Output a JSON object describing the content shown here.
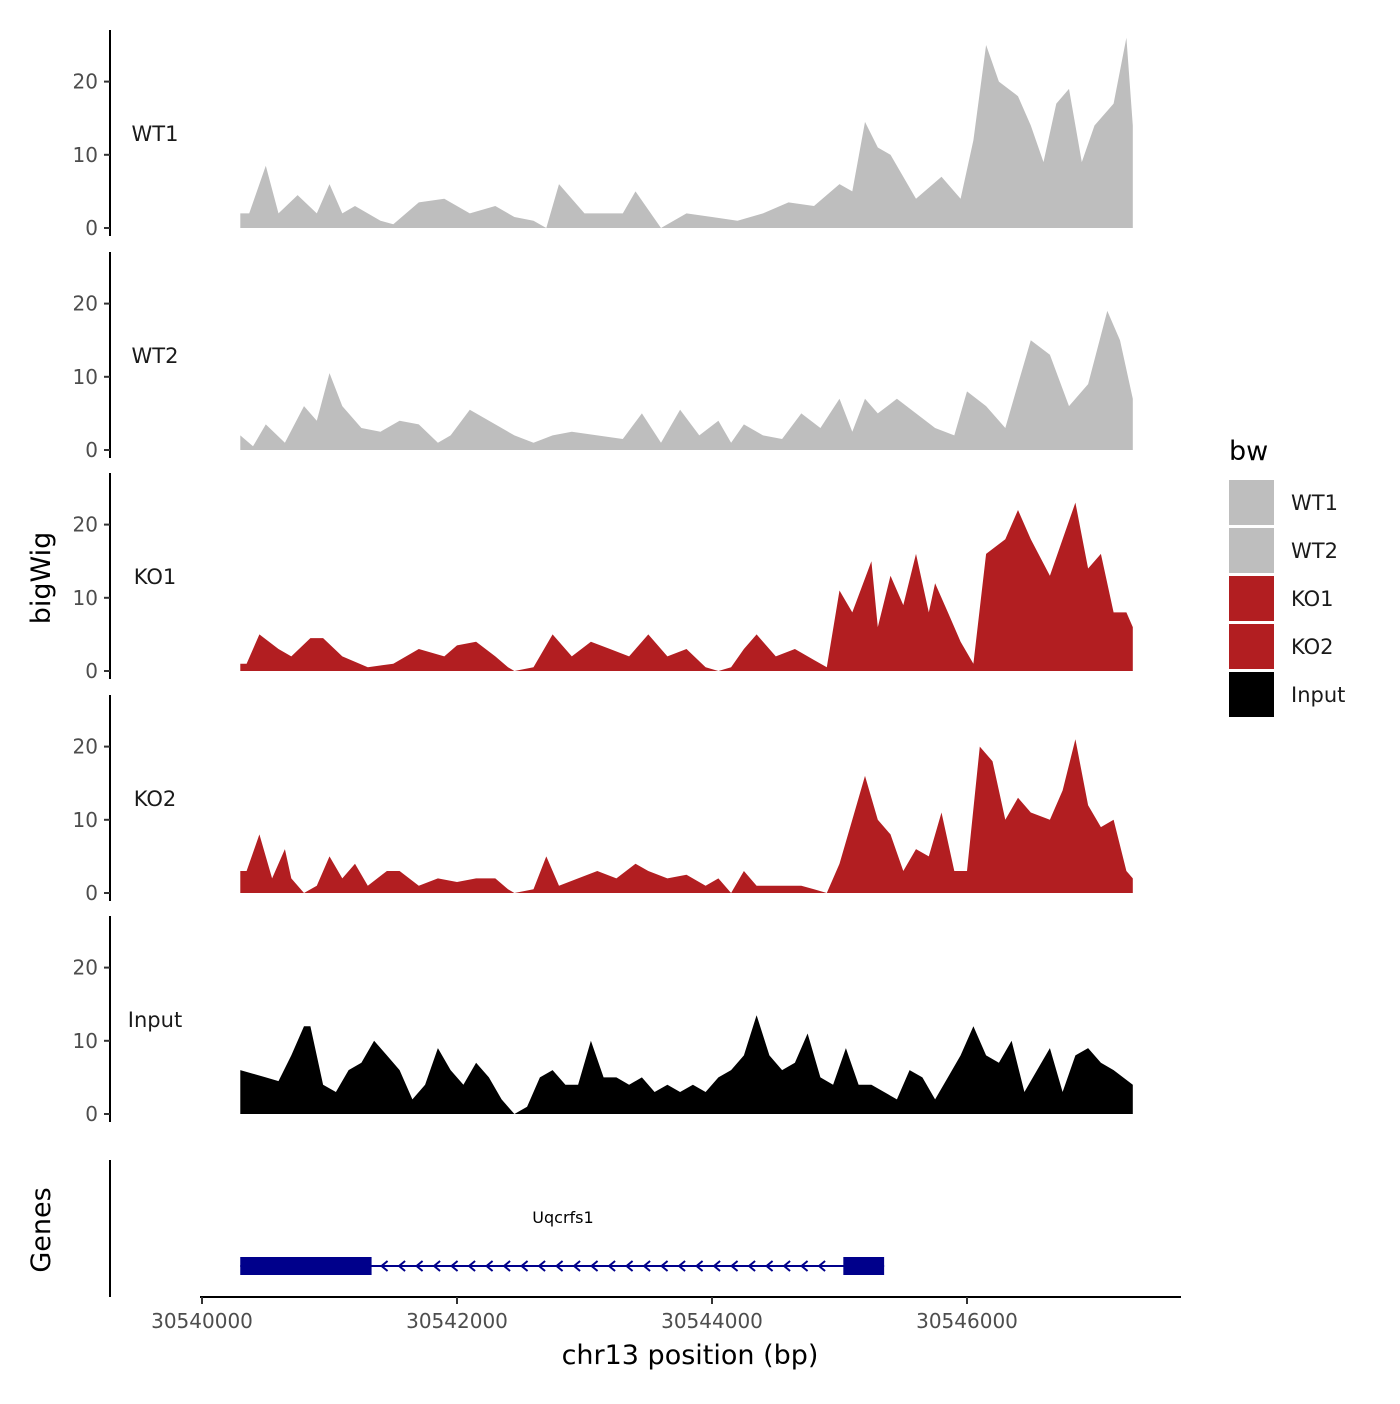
{
  "chart_data": {
    "type": "area",
    "xlabel": "chr13 position (bp)",
    "ylabel": "bigWig",
    "genes_label": "Genes",
    "xlim": [
      30539985,
      30547850
    ],
    "ylim": [
      0,
      27
    ],
    "x_ticks": [
      30540000,
      30542000,
      30544000,
      30546000
    ],
    "y_ticks": [
      0,
      10,
      20
    ],
    "legend": {
      "title": "bw",
      "items": [
        {
          "label": "WT1",
          "color": "#bebebe"
        },
        {
          "label": "WT2",
          "color": "#bebebe"
        },
        {
          "label": "KO1",
          "color": "#b21e21"
        },
        {
          "label": "KO2",
          "color": "#b21e21"
        },
        {
          "label": "Input",
          "color": "#000000"
        }
      ]
    },
    "series": [
      {
        "name": "WT1",
        "color": "#bebebe",
        "x": [
          30540300,
          30540370,
          30540500,
          30540600,
          30540750,
          30540900,
          30541000,
          30541100,
          30541200,
          30541400,
          30541500,
          30541700,
          30541900,
          30542100,
          30542300,
          30542450,
          30542600,
          30542700,
          30542800,
          30543000,
          30543300,
          30543400,
          30543600,
          30543800,
          30544000,
          30544200,
          30544400,
          30544600,
          30544800,
          30545000,
          30545100,
          30545200,
          30545300,
          30545400,
          30545600,
          30545800,
          30545950,
          30546050,
          30546150,
          30546250,
          30546400,
          30546500,
          30546600,
          30546700,
          30546800,
          30546900,
          30547000,
          30547150,
          30547250,
          30547300
        ],
        "y": [
          2,
          2,
          8.5,
          2,
          4.5,
          2,
          6,
          2,
          3,
          1,
          0.5,
          3.5,
          4,
          2,
          3,
          1.5,
          1,
          0,
          6,
          2,
          2,
          5,
          0,
          2,
          1.5,
          1,
          2,
          3.5,
          3,
          6,
          5,
          14.5,
          11,
          10,
          4,
          7,
          4,
          12,
          25,
          20,
          18,
          14,
          9,
          17,
          19,
          9,
          14,
          17,
          26,
          14
        ]
      },
      {
        "name": "WT2",
        "color": "#bebebe",
        "x": [
          30540300,
          30540400,
          30540500,
          30540650,
          30540800,
          30540900,
          30541000,
          30541100,
          30541250,
          30541400,
          30541550,
          30541700,
          30541850,
          30541950,
          30542100,
          30542300,
          30542450,
          30542600,
          30542750,
          30542900,
          30543100,
          30543300,
          30543450,
          30543600,
          30543750,
          30543900,
          30544050,
          30544150,
          30544250,
          30544400,
          30544550,
          30544700,
          30544850,
          30545000,
          30545100,
          30545200,
          30545300,
          30545450,
          30545600,
          30545750,
          30545900,
          30546000,
          30546150,
          30546300,
          30546400,
          30546500,
          30546650,
          30546800,
          30546950,
          30547100,
          30547200,
          30547300
        ],
        "y": [
          2,
          0.5,
          3.5,
          1,
          6,
          4,
          10.5,
          6,
          3,
          2.5,
          4,
          3.5,
          1,
          2,
          5.5,
          3.5,
          2,
          1,
          2,
          2.5,
          2,
          1.5,
          5,
          1,
          5.5,
          2,
          4,
          1,
          3.5,
          2,
          1.5,
          5,
          3,
          7,
          2.5,
          7,
          5,
          7,
          5,
          3,
          2,
          8,
          6,
          3,
          9,
          15,
          13,
          6,
          9,
          19,
          15,
          7
        ]
      },
      {
        "name": "KO1",
        "color": "#b21e21",
        "x": [
          30540300,
          30540350,
          30540450,
          30540600,
          30540700,
          30540850,
          30540950,
          30541100,
          30541300,
          30541500,
          30541700,
          30541900,
          30542000,
          30542150,
          30542300,
          30542400,
          30542450,
          30542600,
          30542750,
          30542900,
          30543050,
          30543200,
          30543350,
          30543500,
          30543650,
          30543800,
          30543950,
          30544050,
          30544150,
          30544250,
          30544350,
          30544500,
          30544650,
          30544800,
          30544900,
          30545000,
          30545100,
          30545250,
          30545300,
          30545400,
          30545500,
          30545600,
          30545700,
          30545750,
          30545850,
          30545950,
          30546050,
          30546150,
          30546300,
          30546400,
          30546500,
          30546650,
          30546750,
          30546850,
          30546950,
          30547050,
          30547150,
          30547250,
          30547300
        ],
        "y": [
          1,
          1,
          5,
          3,
          2,
          4.5,
          4.5,
          2,
          0.5,
          1,
          3,
          2,
          3.5,
          4,
          2,
          0.5,
          0,
          0.5,
          5,
          2,
          4,
          3,
          2,
          5,
          2,
          3,
          0.5,
          0,
          0.5,
          3,
          5,
          2,
          3,
          1.5,
          0.5,
          11,
          8,
          15,
          6,
          13,
          9,
          16,
          8,
          12,
          8,
          4,
          1,
          16,
          18,
          22,
          18,
          13,
          18,
          23,
          14,
          16,
          8,
          8,
          6
        ]
      },
      {
        "name": "KO2",
        "color": "#b21e21",
        "x": [
          30540300,
          30540350,
          30540450,
          30540550,
          30540650,
          30540700,
          30540800,
          30540900,
          30541000,
          30541100,
          30541200,
          30541300,
          30541450,
          30541550,
          30541700,
          30541850,
          30542000,
          30542150,
          30542300,
          30542400,
          30542450,
          30542600,
          30542700,
          30542800,
          30542950,
          30543100,
          30543250,
          30543400,
          30543500,
          30543650,
          30543800,
          30543950,
          30544050,
          30544150,
          30544250,
          30544350,
          30544500,
          30544600,
          30544700,
          30544800,
          30544900,
          30545000,
          30545100,
          30545200,
          30545300,
          30545400,
          30545500,
          30545600,
          30545700,
          30545800,
          30545900,
          30546000,
          30546100,
          30546200,
          30546300,
          30546400,
          30546500,
          30546650,
          30546750,
          30546850,
          30546950,
          30547050,
          30547150,
          30547250,
          30547300
        ],
        "y": [
          3,
          3,
          8,
          2,
          6,
          2,
          0,
          1,
          5,
          2,
          4,
          1,
          3,
          3,
          1,
          2,
          1.5,
          2,
          2,
          0.5,
          0,
          0.5,
          5,
          1,
          2,
          3,
          2,
          4,
          3,
          2,
          2.5,
          1,
          2,
          0,
          3,
          1,
          1,
          1,
          1,
          0.5,
          0,
          4,
          10,
          16,
          10,
          8,
          3,
          6,
          5,
          11,
          3,
          3,
          20,
          18,
          10,
          13,
          11,
          10,
          14,
          21,
          12,
          9,
          10,
          3,
          2
        ]
      },
      {
        "name": "Input",
        "color": "#000000",
        "x": [
          30540300,
          30540400,
          30540500,
          30540600,
          30540700,
          30540800,
          30540850,
          30540950,
          30541050,
          30541150,
          30541250,
          30541350,
          30541450,
          30541550,
          30541650,
          30541750,
          30541850,
          30541950,
          30542050,
          30542150,
          30542250,
          30542350,
          30542450,
          30542550,
          30542650,
          30542750,
          30542850,
          30542950,
          30543050,
          30543150,
          30543250,
          30543350,
          30543450,
          30543550,
          30543650,
          30543750,
          30543850,
          30543950,
          30544050,
          30544150,
          30544250,
          30544350,
          30544450,
          30544550,
          30544650,
          30544750,
          30544850,
          30544950,
          30545050,
          30545150,
          30545250,
          30545350,
          30545450,
          30545550,
          30545650,
          30545750,
          30545850,
          30545950,
          30546050,
          30546150,
          30546250,
          30546350,
          30546450,
          30546550,
          30546650,
          30546750,
          30546850,
          30546950,
          30547050,
          30547150,
          30547300
        ],
        "y": [
          6,
          5.5,
          5,
          4.5,
          8,
          12,
          12,
          4,
          3,
          6,
          7,
          10,
          8,
          6,
          2,
          4,
          9,
          6,
          4,
          7,
          5,
          2,
          0,
          1,
          5,
          6,
          4,
          4,
          10,
          5,
          5,
          4,
          5,
          3,
          4,
          3,
          4,
          3,
          5,
          6,
          8,
          13.5,
          8,
          6,
          7,
          11,
          5,
          4,
          9,
          4,
          4,
          3,
          2,
          6,
          5,
          2,
          5,
          8,
          12,
          8,
          7,
          10,
          3,
          6,
          9,
          3,
          8,
          9,
          7,
          6,
          4
        ]
      }
    ],
    "gene": {
      "name": "Uqcrfs1",
      "strand": "-",
      "start": 30540300,
      "end": 30545350,
      "exons": [
        [
          30540300,
          30541330
        ],
        [
          30545030,
          30545350
        ]
      ]
    }
  }
}
